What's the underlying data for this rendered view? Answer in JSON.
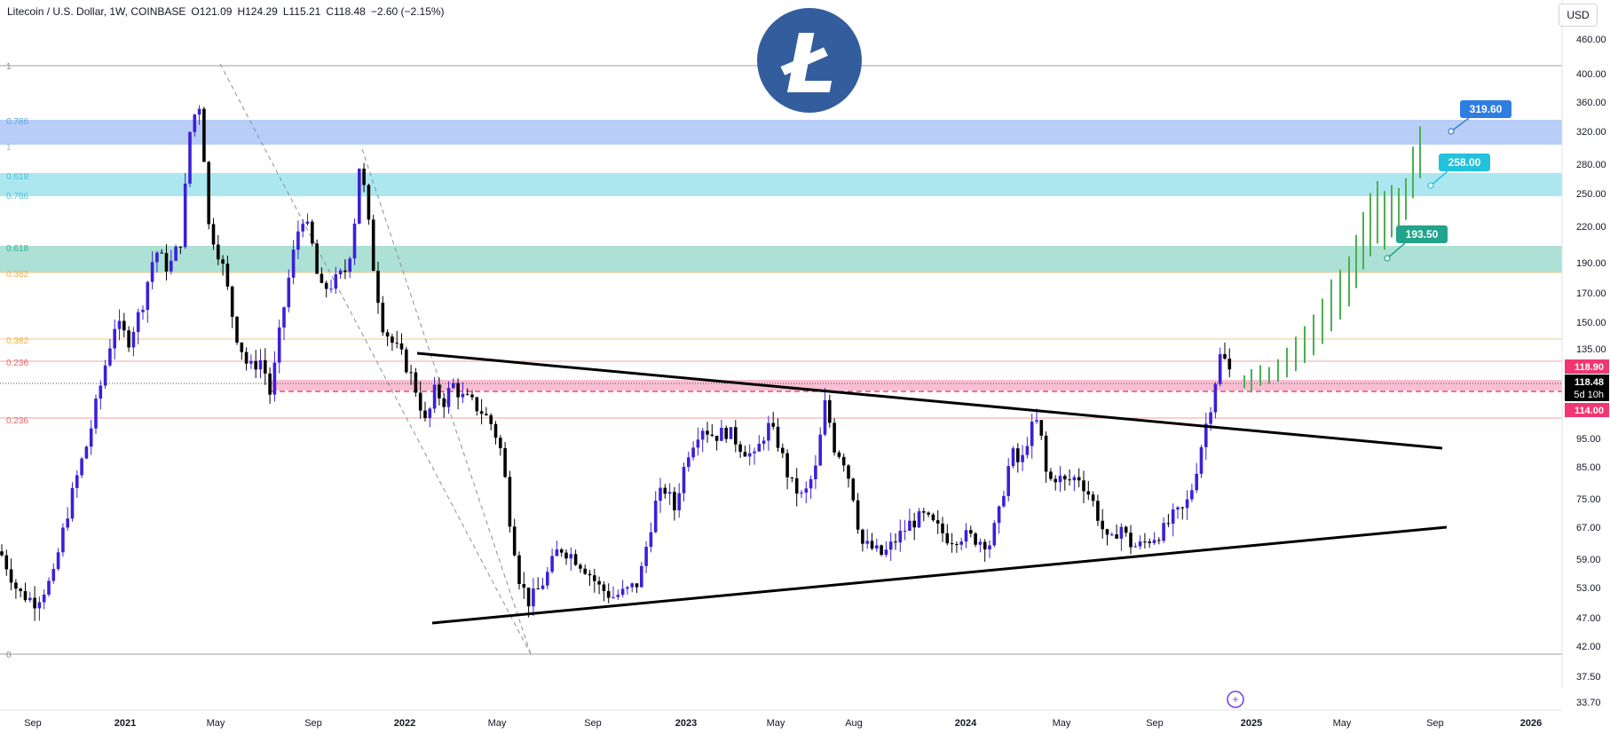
{
  "header": {
    "symbol": "Litecoin / U.S. Dollar, 1W, COINBASE",
    "open": "O121.09",
    "high": "H124.29",
    "low": "L115.21",
    "close": "C118.48",
    "change": "−2.60 (−2.15%)"
  },
  "currency_label": "USD",
  "logo": {
    "letter": "Ł",
    "color": "#345d9d"
  },
  "colors": {
    "bull": "#3c20d6",
    "bear": "#000000",
    "projection": "#4caf50",
    "band_blue": "#b5cbf7",
    "band_cyan": "#a8e6ef",
    "band_teal": "#a9dfd3",
    "band_pink": "#f7b4cc",
    "price_red": "#f23672",
    "label_blue": "#2e7de3",
    "label_cyan": "#22c1dc",
    "label_teal": "#22a38b"
  },
  "price_axis": {
    "ticks": [
      "460.00",
      "400.00",
      "360.00",
      "320.00",
      "280.00",
      "250.00",
      "220.00",
      "190.00",
      "170.00",
      "150.00",
      "135.00",
      "118.90",
      "118.48",
      "114.00",
      "95.00",
      "85.00",
      "75.00",
      "67.00",
      "59.00",
      "53.00",
      "47.00",
      "42.00",
      "37.50",
      "33.70"
    ],
    "price_tags": [
      {
        "value": "118.90",
        "color": "#f23672"
      },
      {
        "value": "118.48",
        "sub": "5d 10h",
        "color": "#000000"
      },
      {
        "value": "114.00",
        "color": "#f23672"
      }
    ]
  },
  "time_axis": {
    "labels": [
      "Sep",
      "2021",
      "May",
      "Sep",
      "2022",
      "May",
      "Sep",
      "2023",
      "May",
      "Aug",
      "2024",
      "May",
      "Sep",
      "2025",
      "May",
      "Sep",
      "2026"
    ],
    "bold": [
      "2021",
      "2022",
      "2023",
      "2024",
      "2025",
      "2026"
    ]
  },
  "fib_labels": {
    "left_top": "1",
    "left_bottom": "0",
    "levels": [
      {
        "text": "0.786",
        "color": "#5aa6e6"
      },
      {
        "text": "1",
        "color": "#9fb5d6"
      },
      {
        "text": "0.618",
        "color": "#4ec3d2"
      },
      {
        "text": "0.786",
        "color": "#4ec3d2"
      },
      {
        "text": "0.618",
        "color": "#35b091"
      },
      {
        "text": "0.382",
        "color": "#f0b050"
      },
      {
        "text": "0.382",
        "color": "#f0b050"
      },
      {
        "text": "0.236",
        "color": "#e96b6b"
      },
      {
        "text": "0.236",
        "color": "#e96b6b"
      }
    ]
  },
  "targets": [
    {
      "label": "319.60",
      "color": "#2e7de3"
    },
    {
      "label": "258.00",
      "color": "#22c1dc"
    },
    {
      "label": "193.50",
      "color": "#22a38b"
    }
  ],
  "chart_data": {
    "type": "candlestick",
    "symbol": "LTCUSD",
    "interval": "1W",
    "exchange": "COINBASE",
    "last_price": 118.48,
    "ohlc_last": {
      "open": 121.09,
      "high": 124.29,
      "low": 115.21,
      "close": 118.48,
      "change": -2.6,
      "change_pct": -2.15
    },
    "y_scale": "log",
    "y_ticks": [
      460,
      400,
      360,
      320,
      280,
      250,
      220,
      190,
      170,
      150,
      135,
      95,
      85,
      75,
      67,
      59,
      53,
      47,
      42,
      37.5,
      33.7
    ],
    "target_levels": [
      319.6,
      258.0,
      193.5
    ],
    "resistance_band": [
      114.0,
      118.9
    ],
    "x_labels": [
      "Sep",
      "2021",
      "May",
      "Sep",
      "2022",
      "May",
      "Sep",
      "2023",
      "May",
      "Aug",
      "2024",
      "May",
      "Sep",
      "2025",
      "May",
      "Sep",
      "2026"
    ]
  }
}
